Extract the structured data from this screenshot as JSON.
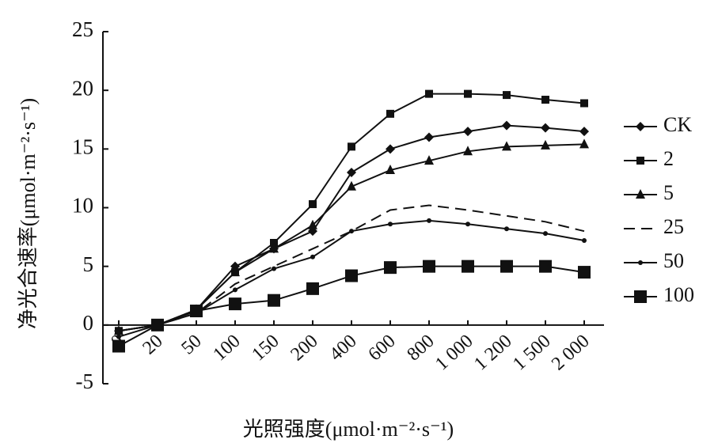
{
  "chart_data": {
    "type": "line",
    "y_label": "净光合速率(μmol·m⁻²·s⁻¹)",
    "x_label": "光照强度(μmol·m⁻²·s⁻¹)",
    "categories": [
      "0",
      "20",
      "50",
      "100",
      "150",
      "200",
      "400",
      "600",
      "800",
      "1 000",
      "1 200",
      "1 500",
      "2 000"
    ],
    "ylim": [
      -5,
      25
    ],
    "yticks": [
      -5,
      0,
      5,
      10,
      15,
      20,
      25
    ],
    "series": [
      {
        "name": "CK",
        "color": "#111111",
        "marker": "diamond",
        "dashed": false,
        "values": [
          -0.5,
          0,
          1.3,
          5,
          6.5,
          8,
          13,
          15,
          16,
          16.5,
          17,
          16.8,
          16.5
        ]
      },
      {
        "name": "2",
        "color": "#111111",
        "marker": "square",
        "dashed": false,
        "values": [
          -0.5,
          0,
          1.3,
          4.5,
          7,
          10.3,
          15.2,
          18,
          19.7,
          19.7,
          19.6,
          19.2,
          18.9
        ]
      },
      {
        "name": "5",
        "color": "#111111",
        "marker": "triangle",
        "dashed": false,
        "values": [
          -0.5,
          0,
          1.3,
          4.5,
          6.5,
          8.5,
          11.8,
          13.2,
          14,
          14.8,
          15.2,
          15.3,
          15.4
        ]
      },
      {
        "name": "25",
        "color": "#111111",
        "marker": "none",
        "dashed": true,
        "values": [
          -0.5,
          0,
          1,
          3.5,
          5,
          6.5,
          8,
          9.8,
          10.2,
          9.8,
          9.3,
          8.8,
          8
        ]
      },
      {
        "name": "50",
        "color": "#111111",
        "marker": "dot",
        "dashed": false,
        "values": [
          -1,
          0,
          1,
          3,
          4.8,
          5.8,
          8,
          8.6,
          8.9,
          8.6,
          8.2,
          7.8,
          7.2
        ]
      },
      {
        "name": "100",
        "color": "#111111",
        "marker": "bigsquare",
        "dashed": false,
        "values": [
          -1.8,
          0,
          1.2,
          1.8,
          2.1,
          3.1,
          4.2,
          4.9,
          5,
          5,
          5,
          5,
          4.5
        ]
      }
    ]
  }
}
